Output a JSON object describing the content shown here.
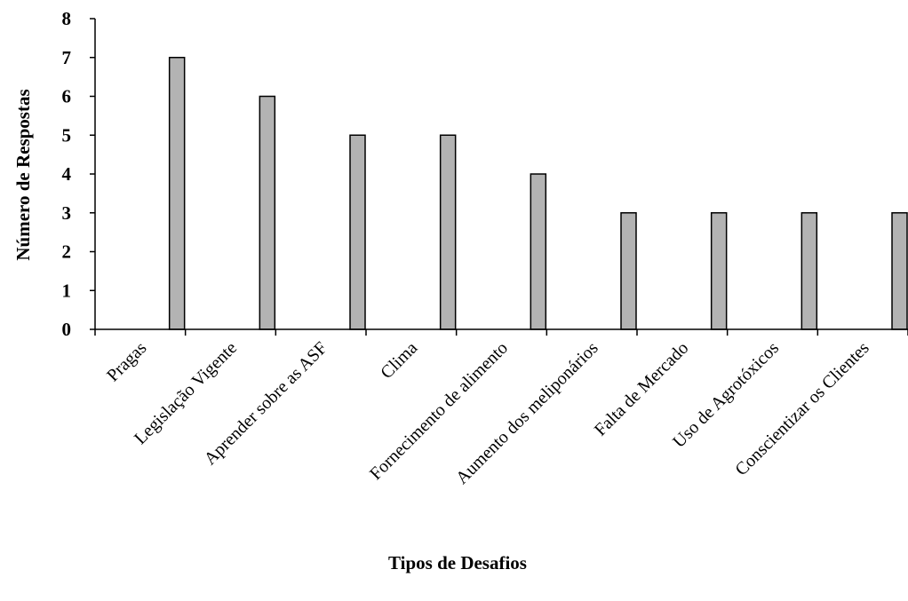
{
  "chart_data": {
    "type": "bar",
    "categories": [
      "Pragas",
      "Legislação Vigente",
      "Aprender sobre as ASF",
      "Clima",
      "Fornecimento de alimento",
      "Aumento dos meliponários",
      "Falta de Mercado",
      "Uso de Agrotóxicos",
      "Conscientizar os Clientes"
    ],
    "values": [
      7,
      6,
      5,
      5,
      4,
      3,
      3,
      3,
      3
    ],
    "xlabel": "Tipos de Desafios",
    "ylabel": "Número de Respostas",
    "ylim": [
      0,
      8
    ],
    "yticks": [
      "0",
      "1",
      "2",
      "3",
      "4",
      "5",
      "6",
      "7",
      "8"
    ],
    "grid": false,
    "legend": "none",
    "colors": {
      "bar_fill": "#b3b3b3",
      "bar_stroke": "#000000"
    }
  }
}
